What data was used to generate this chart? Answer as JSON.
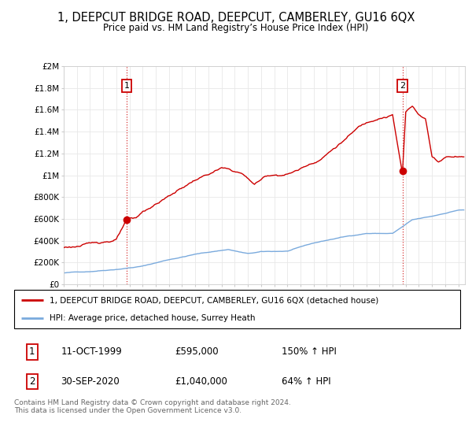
{
  "title": "1, DEEPCUT BRIDGE ROAD, DEEPCUT, CAMBERLEY, GU16 6QX",
  "subtitle": "Price paid vs. HM Land Registry’s House Price Index (HPI)",
  "title_fontsize": 10.5,
  "subtitle_fontsize": 8.5,
  "ylabel_ticks": [
    "£0",
    "£200K",
    "£400K",
    "£600K",
    "£800K",
    "£1M",
    "£1.2M",
    "£1.4M",
    "£1.6M",
    "£1.8M",
    "£2M"
  ],
  "ylabel_values": [
    0,
    200000,
    400000,
    600000,
    800000,
    1000000,
    1200000,
    1400000,
    1600000,
    1800000,
    2000000
  ],
  "xlim_start": 1995.0,
  "xlim_end": 2025.5,
  "ylim": [
    0,
    2000000
  ],
  "sale1_date": 1999.78,
  "sale1_price": 595000,
  "sale2_date": 2020.75,
  "sale2_price": 1040000,
  "legend_line1": "1, DEEPCUT BRIDGE ROAD, DEEPCUT, CAMBERLEY, GU16 6QX (detached house)",
  "legend_line2": "HPI: Average price, detached house, Surrey Heath",
  "table_row1": [
    "1",
    "11-OCT-1999",
    "£595,000",
    "150% ↑ HPI"
  ],
  "table_row2": [
    "2",
    "30-SEP-2020",
    "£1,040,000",
    "64% ↑ HPI"
  ],
  "footer": "Contains HM Land Registry data © Crown copyright and database right 2024.\nThis data is licensed under the Open Government Licence v3.0.",
  "house_color": "#cc0000",
  "hpi_color": "#7aaadd",
  "vline_color": "#cc0000",
  "grid_color": "#e8e8e8"
}
